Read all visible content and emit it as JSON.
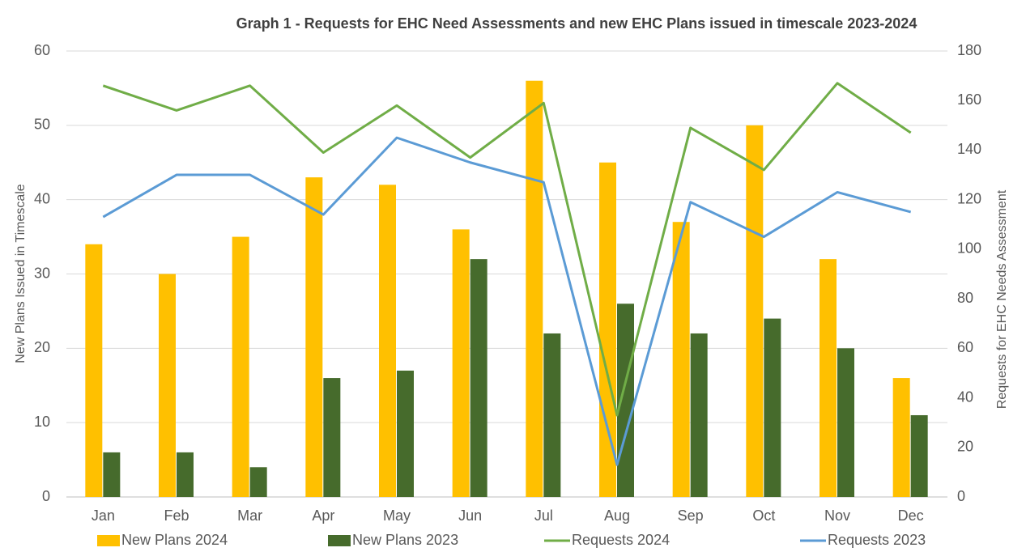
{
  "chart_data": {
    "type": "bar",
    "title": "Graph 1 - Requests for EHC Need Assessments and new EHC Plans issued in timescale 2023-2024",
    "ylabel": "New Plans Issued in Timescale",
    "y2label": "Requests for EHC Needs Assessment",
    "categories": [
      "Jan",
      "Feb",
      "Mar",
      "Apr",
      "May",
      "Jun",
      "Jul",
      "Aug",
      "Sep",
      "Oct",
      "Nov",
      "Dec"
    ],
    "series": [
      {
        "name": "New Plans 2024",
        "type": "bar",
        "color": "#ffc000",
        "values": [
          34,
          30,
          35,
          43,
          42,
          36,
          56,
          45,
          37,
          50,
          32,
          16
        ]
      },
      {
        "name": "New Plans 2023",
        "type": "bar",
        "color": "#466b2c",
        "values": [
          6,
          6,
          4,
          16,
          17,
          32,
          22,
          26,
          22,
          24,
          20,
          11
        ]
      },
      {
        "name": "Requests 2024",
        "type": "line",
        "axis": "y2",
        "color": "#70ad47",
        "values": [
          166,
          156,
          166,
          139,
          158,
          137,
          159,
          33,
          149,
          132,
          167,
          147
        ]
      },
      {
        "name": "Requests 2023",
        "type": "line",
        "axis": "y2",
        "color": "#5b9bd5",
        "values": [
          113,
          130,
          130,
          114,
          145,
          135,
          127,
          13,
          119,
          105,
          123,
          115
        ]
      }
    ],
    "ylim": [
      0,
      60
    ],
    "yticks": [
      0,
      10,
      20,
      30,
      40,
      50,
      60
    ],
    "y2lim": [
      0,
      180
    ],
    "y2ticks": [
      0,
      20,
      40,
      60,
      80,
      100,
      120,
      140,
      160,
      180
    ],
    "grid": true,
    "legend": "bottom"
  }
}
